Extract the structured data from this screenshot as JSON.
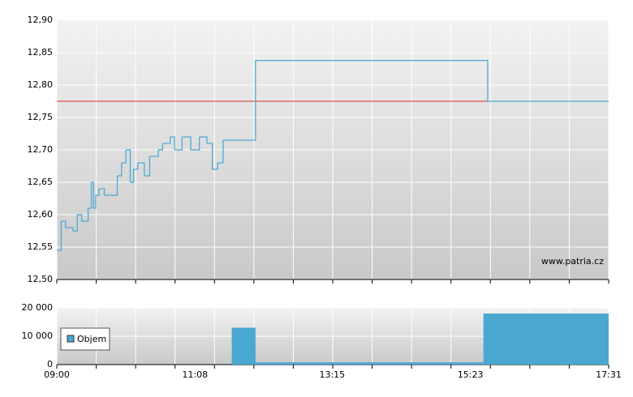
{
  "chart_data": [
    {
      "type": "line",
      "step": true,
      "x": [
        "09:00",
        "09:04",
        "09:08",
        "09:15",
        "09:19",
        "09:23",
        "09:29",
        "09:32",
        "09:34",
        "09:36",
        "09:39",
        "09:44",
        "09:49",
        "09:56",
        "10:00",
        "10:04",
        "10:08",
        "10:11",
        "10:15",
        "10:21",
        "10:26",
        "10:34",
        "10:38",
        "10:45",
        "10:49",
        "10:56",
        "11:04",
        "11:12",
        "11:19",
        "11:24",
        "11:29",
        "11:34",
        "11:42",
        "12:04",
        "15:39"
      ],
      "series": [
        {
          "color": "#4fa9d2",
          "values": [
            12.545,
            12.59,
            12.58,
            12.575,
            12.6,
            12.59,
            12.61,
            12.65,
            12.61,
            12.63,
            12.64,
            12.63,
            12.63,
            12.66,
            12.68,
            12.7,
            12.65,
            12.67,
            12.68,
            12.66,
            12.69,
            12.7,
            12.71,
            12.72,
            12.7,
            12.72,
            12.7,
            12.72,
            12.71,
            12.67,
            12.68,
            12.715,
            12.715,
            12.838,
            12.775
          ]
        }
      ],
      "reference_line": {
        "value": 12.775,
        "color": "#d03030"
      },
      "xlim": [
        "09:00",
        "17:31"
      ],
      "ylim": [
        12.5,
        12.9
      ],
      "yticks": [
        {
          "value": 12.5,
          "label": "12,50"
        },
        {
          "value": 12.55,
          "label": "12,55"
        },
        {
          "value": 12.6,
          "label": "12,60"
        },
        {
          "value": 12.65,
          "label": "12,65"
        },
        {
          "value": 12.7,
          "label": "12,70"
        },
        {
          "value": 12.75,
          "label": "12,75"
        },
        {
          "value": 12.8,
          "label": "12,80"
        },
        {
          "value": 12.85,
          "label": "12,85"
        },
        {
          "value": 12.9,
          "label": "12,90"
        }
      ],
      "grid": true,
      "watermark": "www.patria.cz"
    },
    {
      "type": "bar",
      "x": [
        "11:42",
        "12:04",
        "15:35"
      ],
      "series": [
        {
          "name": "Objem",
          "color": "#4aa8d0",
          "values": [
            13000,
            800,
            18000
          ]
        }
      ],
      "xlim": [
        "09:00",
        "17:31"
      ],
      "xticks": [
        "09:00",
        "11:08",
        "13:15",
        "15:23",
        "17:31"
      ],
      "ylim": [
        0,
        20000
      ],
      "yticks": [
        0,
        {
          "value": 10000,
          "label": "10 000"
        },
        {
          "value": 20000,
          "label": "20 000"
        }
      ],
      "grid": true,
      "legend": "bottom-left"
    }
  ]
}
